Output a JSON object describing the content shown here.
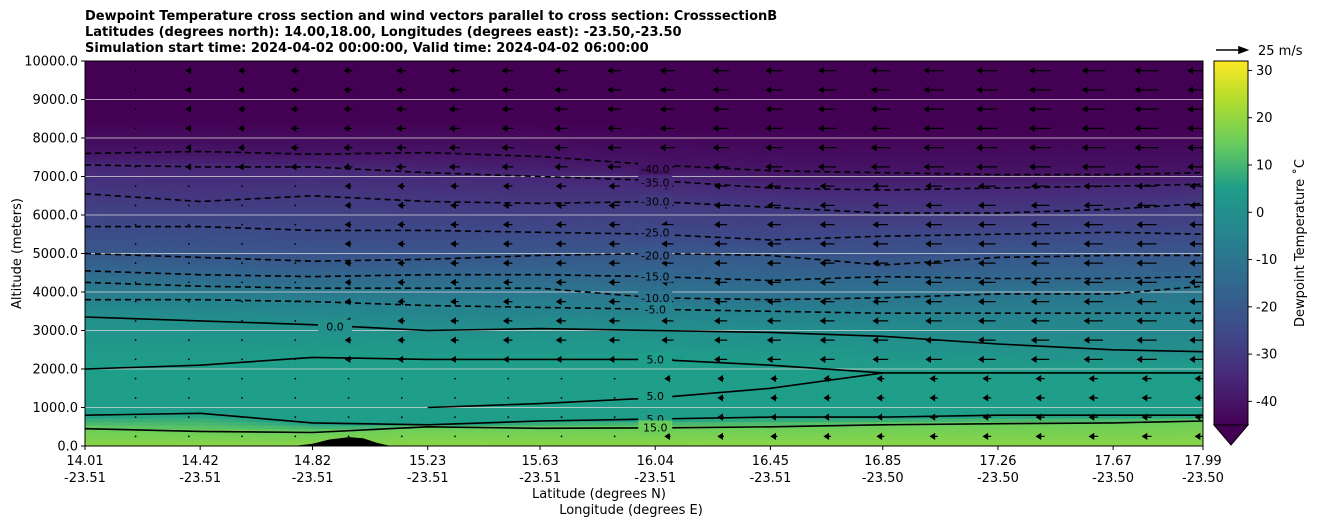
{
  "chart_data": {
    "type": "heatmap",
    "title_lines": [
      "Dewpoint Temperature cross section and wind vectors parallel to cross section: CrosssectionB",
      "Latitudes (degrees north): 14.00,18.00, Longitudes (degrees east): -23.50,-23.50",
      "Simulation start time: 2024-04-02 00:00:00, Valid time: 2024-04-02 06:00:00"
    ],
    "ylabel": "Altitude (meters)",
    "xlabel_lat": "Latitude (degrees N)",
    "xlabel_lon": "Longitude (degrees E)",
    "ylim": [
      0,
      10000
    ],
    "y_ticks": [
      "0.0",
      "1000.0",
      "2000.0",
      "3000.0",
      "4000.0",
      "5000.0",
      "6000.0",
      "7000.0",
      "8000.0",
      "9000.0",
      "10000.0"
    ],
    "y_tick_values": [
      0,
      1000,
      2000,
      3000,
      4000,
      5000,
      6000,
      7000,
      8000,
      9000,
      10000
    ],
    "xlim": [
      14.01,
      17.99
    ],
    "x_ticks": [
      {
        "lat": "14.01",
        "lon": "-23.51",
        "value": 14.01
      },
      {
        "lat": "14.42",
        "lon": "-23.51",
        "value": 14.42
      },
      {
        "lat": "14.82",
        "lon": "-23.51",
        "value": 14.82
      },
      {
        "lat": "15.23",
        "lon": "-23.51",
        "value": 15.23
      },
      {
        "lat": "15.63",
        "lon": "-23.51",
        "value": 15.63
      },
      {
        "lat": "16.04",
        "lon": "-23.51",
        "value": 16.04
      },
      {
        "lat": "16.45",
        "lon": "-23.51",
        "value": 16.45
      },
      {
        "lat": "16.85",
        "lon": "-23.50",
        "value": 16.85
      },
      {
        "lat": "17.26",
        "lon": "-23.50",
        "value": 17.26
      },
      {
        "lat": "17.67",
        "lon": "-23.50",
        "value": 17.67
      },
      {
        "lat": "17.99",
        "lon": "-23.50",
        "value": 17.99
      }
    ],
    "grid": "horizontal",
    "colormap": "viridis",
    "colorbar": {
      "label": "Dewpoint Temperature ˚C",
      "range": [
        -45,
        32
      ],
      "ticks": [
        -40,
        -30,
        -20,
        -10,
        0,
        10,
        20,
        30
      ],
      "extend": "min"
    },
    "quiver_key": {
      "label": "25 m/s"
    },
    "contours": [
      {
        "label": "-40.0",
        "value": -40,
        "label_lat": 16.04,
        "label_alt": 7200,
        "heights": [
          [
            14.01,
            7600
          ],
          [
            14.42,
            7650
          ],
          [
            14.82,
            7580
          ],
          [
            15.23,
            7620
          ],
          [
            15.63,
            7520
          ],
          [
            16.04,
            7300
          ],
          [
            16.45,
            7150
          ],
          [
            16.85,
            7100
          ],
          [
            17.26,
            7050
          ],
          [
            17.67,
            7050
          ],
          [
            17.99,
            7100
          ]
        ]
      },
      {
        "label": "-35.0",
        "value": -35,
        "label_lat": 16.04,
        "label_alt": 6850,
        "heights": [
          [
            14.01,
            7300
          ],
          [
            14.42,
            7250
          ],
          [
            14.82,
            7250
          ],
          [
            15.23,
            7100
          ],
          [
            15.63,
            7000
          ],
          [
            16.04,
            6900
          ],
          [
            16.45,
            6700
          ],
          [
            16.85,
            6650
          ],
          [
            17.26,
            6700
          ],
          [
            17.67,
            6750
          ],
          [
            17.99,
            6800
          ]
        ]
      },
      {
        "label": "-30.0",
        "value": -30,
        "label_lat": 16.04,
        "label_alt": 6350,
        "heights": [
          [
            14.01,
            6550
          ],
          [
            14.42,
            6350
          ],
          [
            14.82,
            6500
          ],
          [
            15.23,
            6350
          ],
          [
            15.63,
            6300
          ],
          [
            16.04,
            6350
          ],
          [
            16.45,
            6200
          ],
          [
            16.85,
            6050
          ],
          [
            17.26,
            6050
          ],
          [
            17.67,
            6150
          ],
          [
            17.99,
            6300
          ]
        ]
      },
      {
        "label": "-25.0",
        "value": -25,
        "label_lat": 16.04,
        "label_alt": 5550,
        "heights": [
          [
            14.01,
            5700
          ],
          [
            14.42,
            5700
          ],
          [
            14.82,
            5600
          ],
          [
            15.23,
            5600
          ],
          [
            15.63,
            5550
          ],
          [
            16.04,
            5500
          ],
          [
            16.45,
            5350
          ],
          [
            16.85,
            5450
          ],
          [
            17.26,
            5500
          ],
          [
            17.67,
            5550
          ],
          [
            17.99,
            5500
          ]
        ]
      },
      {
        "label": "-20.0",
        "value": -20,
        "label_lat": 16.04,
        "label_alt": 4950,
        "heights": [
          [
            14.01,
            5000
          ],
          [
            14.42,
            4900
          ],
          [
            14.82,
            4800
          ],
          [
            15.23,
            4850
          ],
          [
            15.63,
            4950
          ],
          [
            16.04,
            5000
          ],
          [
            16.45,
            4950
          ],
          [
            16.85,
            4700
          ],
          [
            17.26,
            4900
          ],
          [
            17.67,
            4950
          ],
          [
            17.99,
            4950
          ]
        ]
      },
      {
        "label": "-15.0",
        "value": -15,
        "label_lat": 16.04,
        "label_alt": 4400,
        "heights": [
          [
            14.01,
            4550
          ],
          [
            14.42,
            4450
          ],
          [
            14.82,
            4400
          ],
          [
            15.23,
            4450
          ],
          [
            15.63,
            4450
          ],
          [
            16.04,
            4400
          ],
          [
            16.45,
            4300
          ],
          [
            16.85,
            4400
          ],
          [
            17.26,
            4350
          ],
          [
            17.67,
            4350
          ],
          [
            17.99,
            4400
          ]
        ]
      },
      {
        "label": "-10.0",
        "value": -10,
        "label_lat": 16.04,
        "label_alt": 3850,
        "heights": [
          [
            14.01,
            4250
          ],
          [
            14.42,
            4150
          ],
          [
            14.82,
            4100
          ],
          [
            15.23,
            4100
          ],
          [
            15.63,
            4100
          ],
          [
            16.04,
            3850
          ],
          [
            16.45,
            3800
          ],
          [
            16.85,
            3850
          ],
          [
            17.26,
            3950
          ],
          [
            17.67,
            3950
          ],
          [
            17.99,
            4150
          ]
        ]
      },
      {
        "label": "-5.0",
        "value": -5,
        "label_lat": 16.04,
        "label_alt": 3550,
        "heights": [
          [
            14.01,
            3800
          ],
          [
            14.42,
            3800
          ],
          [
            14.82,
            3750
          ],
          [
            15.23,
            3650
          ],
          [
            15.63,
            3600
          ],
          [
            16.04,
            3550
          ],
          [
            16.45,
            3500
          ],
          [
            16.85,
            3450
          ],
          [
            17.26,
            3450
          ],
          [
            17.67,
            3450
          ],
          [
            17.99,
            3450
          ]
        ]
      },
      {
        "label": "0.0",
        "value": 0,
        "label_lat": 14.9,
        "label_alt": 3100,
        "heights": [
          [
            14.01,
            3350
          ],
          [
            14.42,
            3250
          ],
          [
            14.82,
            3150
          ],
          [
            15.23,
            3000
          ],
          [
            15.63,
            3050
          ],
          [
            16.04,
            3000
          ],
          [
            16.45,
            2950
          ],
          [
            16.85,
            2850
          ],
          [
            17.26,
            2650
          ],
          [
            17.67,
            2500
          ],
          [
            17.99,
            2450
          ]
        ]
      },
      {
        "label": "5.0",
        "value": 5,
        "label_lat": 16.04,
        "label_alt": 2250,
        "heights": [
          [
            14.01,
            2000
          ],
          [
            14.42,
            2100
          ],
          [
            14.82,
            2300
          ],
          [
            15.23,
            2250
          ],
          [
            15.63,
            2250
          ],
          [
            16.04,
            2250
          ],
          [
            16.45,
            2100
          ],
          [
            16.85,
            1900
          ],
          [
            17.26,
            1900
          ],
          [
            17.67,
            1900
          ],
          [
            17.99,
            1900
          ]
        ]
      },
      {
        "label": "5.0",
        "value": 5,
        "label_lat": 16.04,
        "label_alt": 1300,
        "heights": [
          [
            15.23,
            1000
          ],
          [
            15.63,
            1100
          ],
          [
            16.04,
            1250
          ],
          [
            16.45,
            1500
          ],
          [
            16.85,
            1900
          ]
        ]
      },
      {
        "label": "5.0",
        "value": 5,
        "label_lat": 16.04,
        "label_alt": 700,
        "heights": [
          [
            14.01,
            800
          ],
          [
            14.42,
            850
          ],
          [
            14.82,
            600
          ],
          [
            15.23,
            550
          ],
          [
            15.63,
            650
          ],
          [
            16.04,
            700
          ],
          [
            16.45,
            750
          ],
          [
            16.85,
            750
          ],
          [
            17.26,
            800
          ],
          [
            17.67,
            800
          ],
          [
            17.99,
            800
          ]
        ]
      },
      {
        "label": "15.0",
        "value": 15,
        "label_lat": 16.04,
        "label_alt": 480,
        "heights": [
          [
            14.01,
            450
          ],
          [
            14.42,
            380
          ],
          [
            14.82,
            350
          ],
          [
            15.23,
            500
          ],
          [
            15.63,
            460
          ],
          [
            16.04,
            470
          ],
          [
            16.45,
            500
          ],
          [
            16.85,
            550
          ],
          [
            17.26,
            580
          ],
          [
            17.67,
            600
          ],
          [
            17.99,
            650
          ]
        ]
      }
    ],
    "terrain": [
      [
        14.01,
        0
      ],
      [
        14.75,
        0
      ],
      [
        14.82,
        60
      ],
      [
        14.88,
        170
      ],
      [
        14.95,
        230
      ],
      [
        15.0,
        200
      ],
      [
        15.05,
        80
      ],
      [
        15.1,
        0
      ],
      [
        17.99,
        0
      ]
    ]
  }
}
